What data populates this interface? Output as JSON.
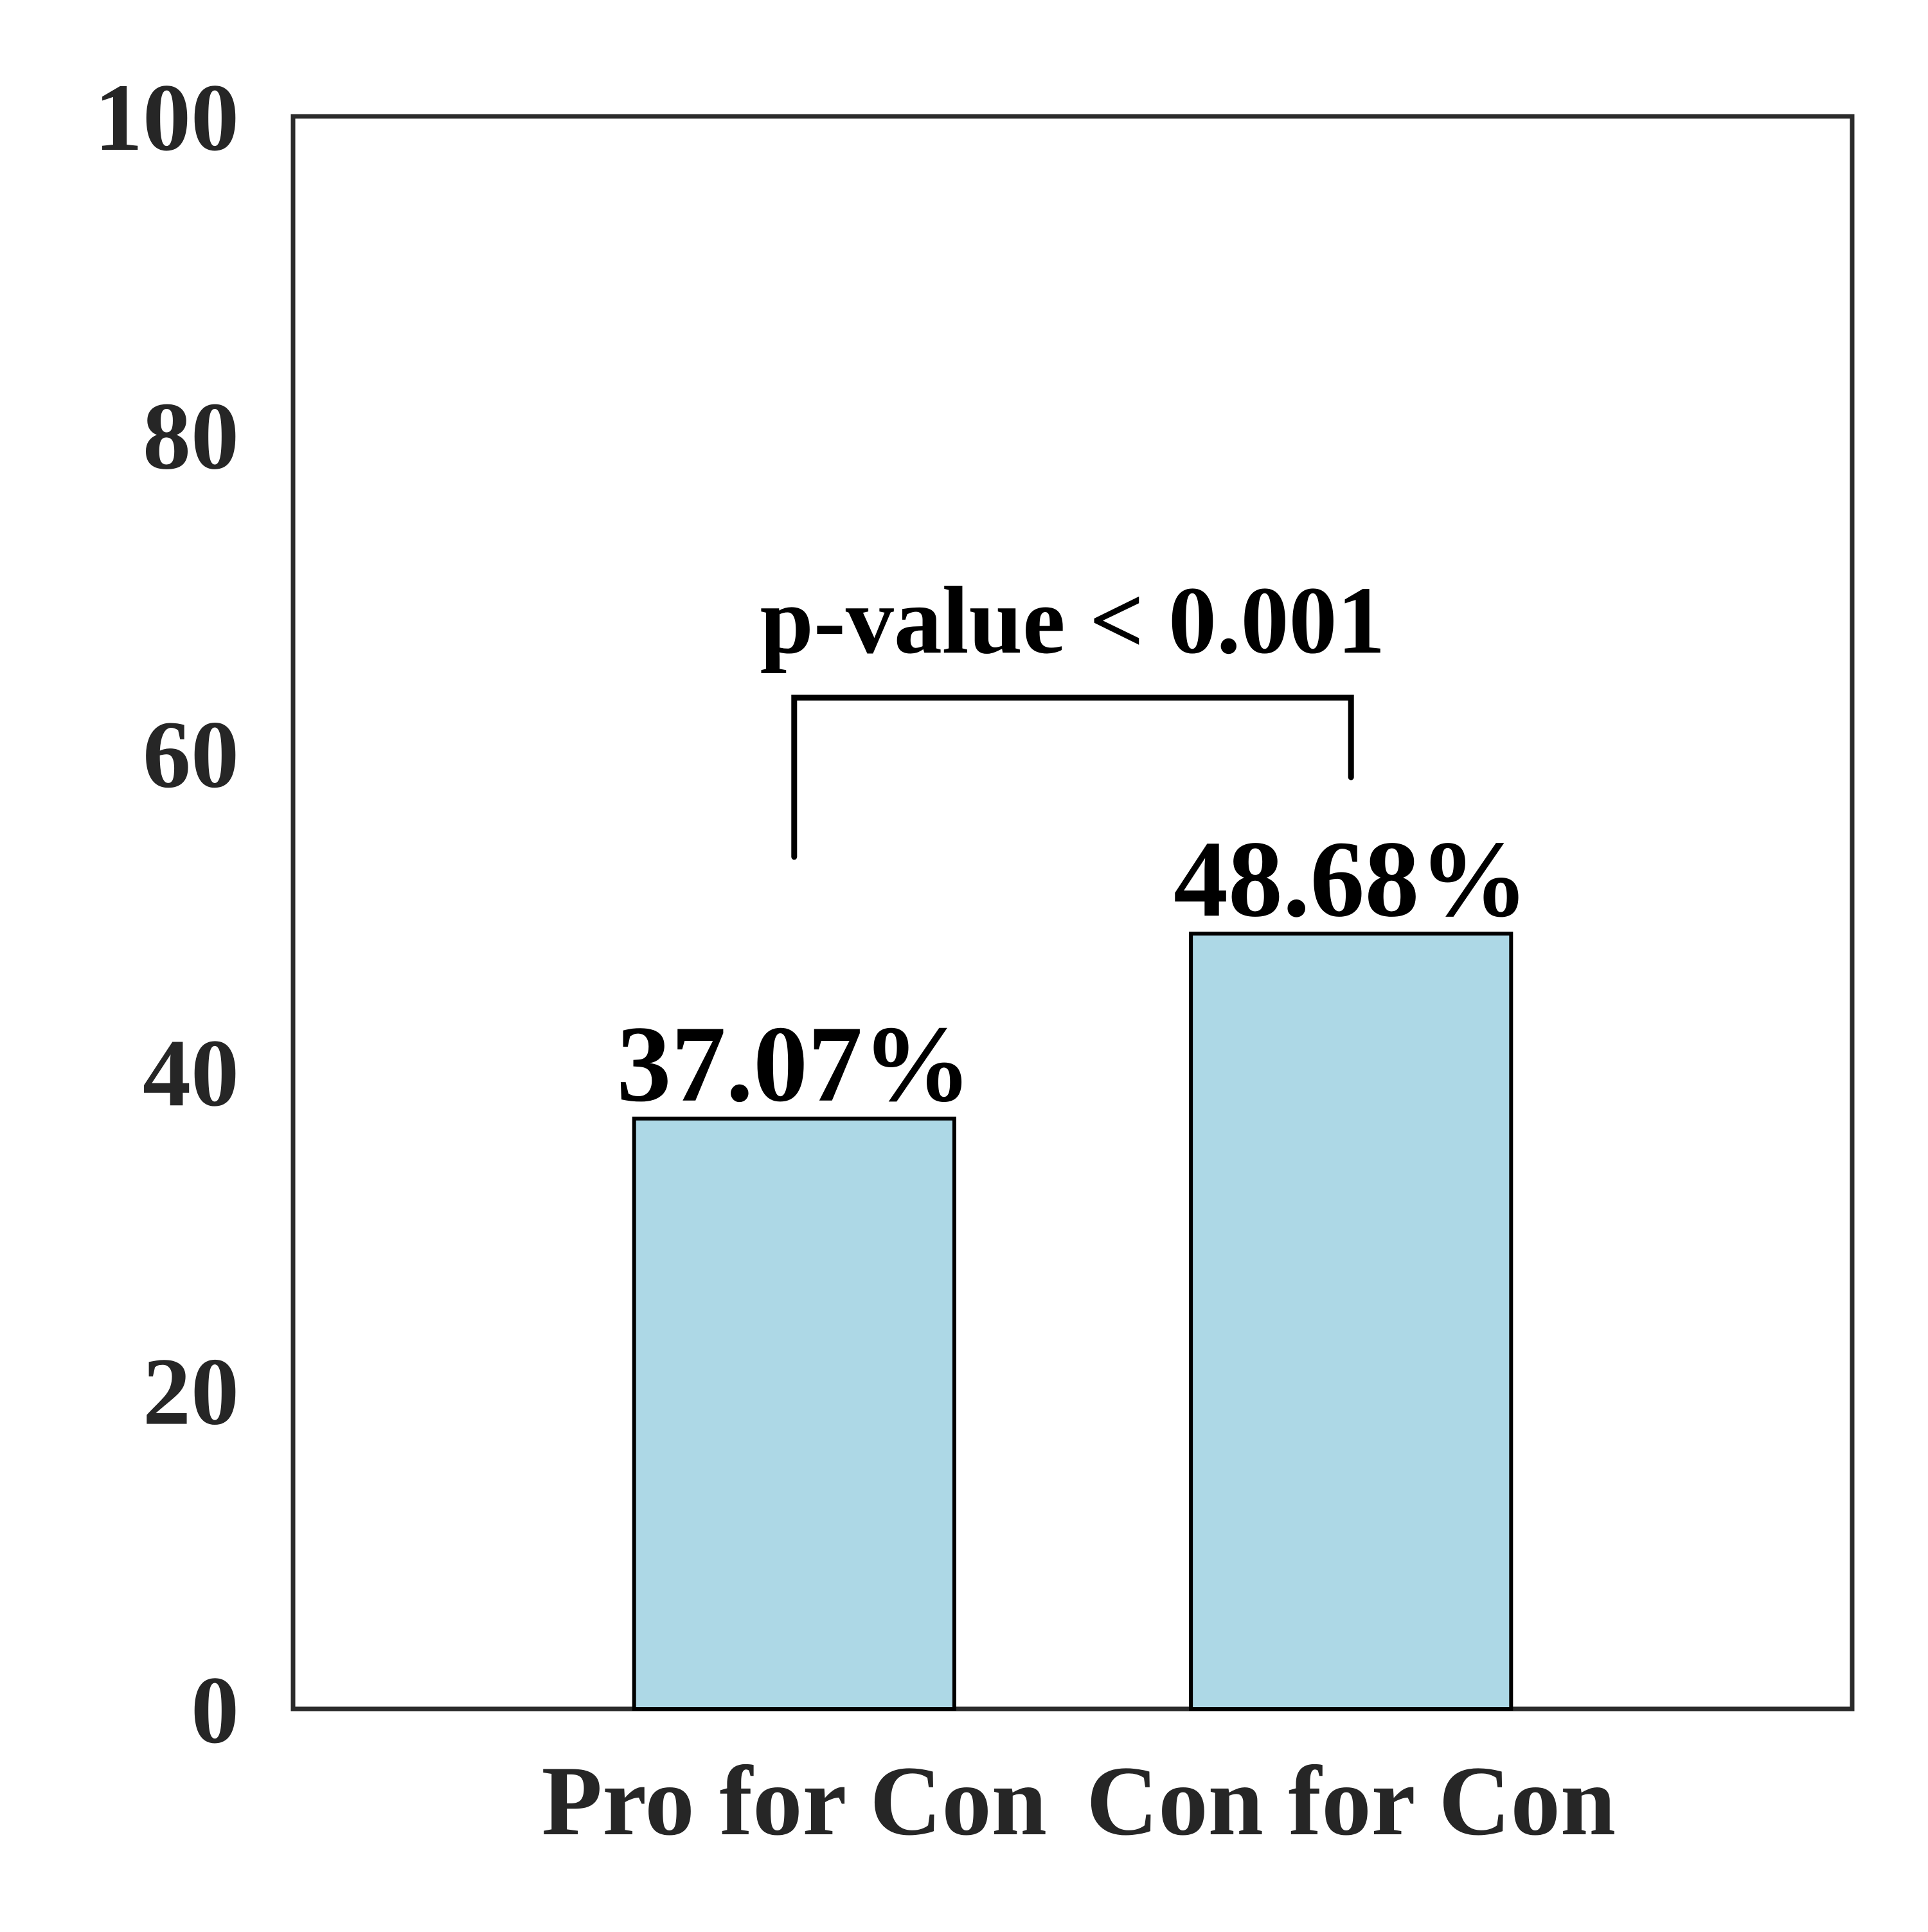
{
  "chart_data": {
    "type": "bar",
    "categories": [
      "Pro for Con",
      "Con for Con"
    ],
    "values": [
      37.07,
      48.68
    ],
    "data_labels": [
      "37.07%",
      "48.68%"
    ],
    "ylim": [
      0,
      100
    ],
    "yticks": [
      "0",
      "20",
      "40",
      "60",
      "80",
      "100"
    ],
    "ytick_values": [
      0,
      20,
      40,
      60,
      80,
      100
    ],
    "grid": false,
    "bar_color": "#add8e6",
    "annotation": {
      "text": "p-value < 0.001",
      "type": "significance-bracket",
      "left_end_value": 53.5,
      "right_end_value": 58.5,
      "top_value": 63.5
    }
  }
}
